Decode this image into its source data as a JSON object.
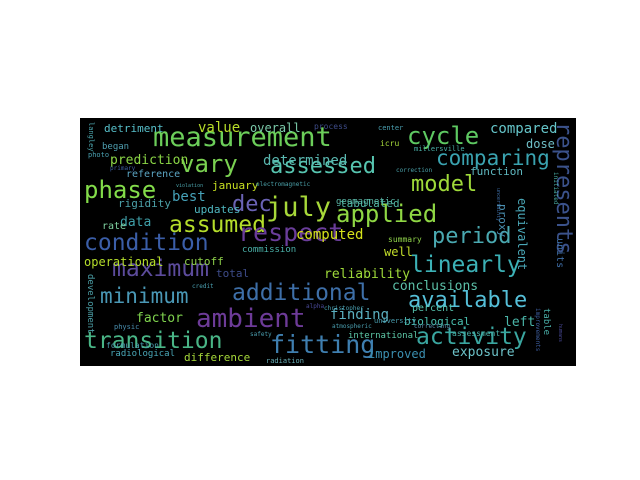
{
  "words": [
    {
      "text": "measurement",
      "color": "#6cce5a"
    },
    {
      "text": "cycle",
      "color": "#5ec962"
    },
    {
      "text": "compared",
      "color": "#65c5c9"
    },
    {
      "text": "vary",
      "color": "#7ad151"
    },
    {
      "text": "assessed",
      "color": "#57c5b0"
    },
    {
      "text": "comparing",
      "color": "#3aa3b0"
    },
    {
      "text": "phase",
      "color": "#83dc4a"
    },
    {
      "text": "dec",
      "color": "#6a63b5"
    },
    {
      "text": "july",
      "color": "#a7d839"
    },
    {
      "text": "model",
      "color": "#9fda3a"
    },
    {
      "text": "assumed",
      "color": "#b5de2b"
    },
    {
      "text": "applied",
      "color": "#8fd744"
    },
    {
      "text": "condition",
      "color": "#3b5ea8"
    },
    {
      "text": "respect",
      "color": "#6a3d9a"
    },
    {
      "text": "period",
      "color": "#4aa9b1"
    },
    {
      "text": "represents",
      "color": "#3b528b"
    },
    {
      "text": "maximum",
      "color": "#5c4b9c"
    },
    {
      "text": "linearly",
      "color": "#3cb1b6"
    },
    {
      "text": "minimum",
      "color": "#4a98b6"
    },
    {
      "text": "additional",
      "color": "#3e6fa8"
    },
    {
      "text": "available",
      "color": "#55bfd8"
    },
    {
      "text": "ambient",
      "color": "#6d3b98"
    },
    {
      "text": "transition",
      "color": "#49b586"
    },
    {
      "text": "fitting",
      "color": "#3f7fb0"
    },
    {
      "text": "activity",
      "color": "#3aa6a0"
    },
    {
      "text": "value",
      "color": "#b8de29"
    },
    {
      "text": "overall",
      "color": "#7ac9a8"
    },
    {
      "text": "detriment",
      "color": "#57bfc9"
    },
    {
      "text": "prediction",
      "color": "#8bd646"
    },
    {
      "text": "reference",
      "color": "#5ca6c4"
    },
    {
      "text": "began",
      "color": "#4f9fb0"
    },
    {
      "text": "determined",
      "color": "#5ab8b0"
    },
    {
      "text": "best",
      "color": "#46a2b9"
    },
    {
      "text": "rigidity",
      "color": "#4ca0a8"
    },
    {
      "text": "data",
      "color": "#3f9fa8"
    },
    {
      "text": "updates",
      "color": "#4fb7c0"
    },
    {
      "text": "january",
      "color": "#c8e020"
    },
    {
      "text": "computed",
      "color": "#d5e21a"
    },
    {
      "text": "well",
      "color": "#c3de2a"
    },
    {
      "text": "tabulated",
      "color": "#4fb3a0"
    },
    {
      "text": "proxy",
      "color": "#4a8fb0"
    },
    {
      "text": "equivalent",
      "color": "#4aa8b8"
    },
    {
      "text": "rate",
      "color": "#7ed0a0"
    },
    {
      "text": "operational",
      "color": "#b5de2b"
    },
    {
      "text": "cutoff",
      "color": "#8fd24a"
    },
    {
      "text": "reliability",
      "color": "#9fda3a"
    },
    {
      "text": "total",
      "color": "#3e4c8a"
    },
    {
      "text": "conclusions",
      "color": "#5cc0a8"
    },
    {
      "text": "factor",
      "color": "#7fd34e"
    },
    {
      "text": "finding",
      "color": "#5bb0c0"
    },
    {
      "text": "biological",
      "color": "#4ac0b0"
    },
    {
      "text": "percent",
      "color": "#57c5b0"
    },
    {
      "text": "left",
      "color": "#4ab5a8"
    },
    {
      "text": "improved",
      "color": "#3b8fb0"
    },
    {
      "text": "exposure",
      "color": "#6cc2c8"
    },
    {
      "text": "radiological",
      "color": "#4aa8b8"
    },
    {
      "text": "difference",
      "color": "#a6d83a"
    },
    {
      "text": "international",
      "color": "#5ec9a8"
    },
    {
      "text": "geomagnetic",
      "color": "#5ab8a8"
    },
    {
      "text": "dose",
      "color": "#6fbfc8"
    },
    {
      "text": "function",
      "color": "#5fb8c0"
    },
    {
      "text": "table",
      "color": "#4ab0a8"
    },
    {
      "text": "commission",
      "color": "#4ab0a8"
    },
    {
      "text": "development",
      "color": "#4ca0a8"
    },
    {
      "text": "formulation",
      "color": "#4c9fb0"
    },
    {
      "text": "radiation",
      "color": "#6ab0b8"
    },
    {
      "text": "units",
      "color": "#3f6fa8"
    },
    {
      "text": "langley",
      "color": "#4aa0a8"
    },
    {
      "text": "photo",
      "color": "#4aa0b0"
    },
    {
      "text": "physic",
      "color": "#4a8fb0"
    },
    {
      "text": "primary",
      "color": "#3e5fa0"
    },
    {
      "text": "summary",
      "color": "#8fd24a"
    },
    {
      "text": "assessment",
      "color": "#4ab0a8"
    },
    {
      "text": "correcting",
      "color": "#5c8fb0"
    },
    {
      "text": "university",
      "color": "#4a9fb0"
    },
    {
      "text": "millersville",
      "color": "#4ab0a8"
    },
    {
      "text": "icru",
      "color": "#a5d83a"
    },
    {
      "text": "center",
      "color": "#4a9fb0"
    },
    {
      "text": "process",
      "color": "#3e4c8a"
    },
    {
      "text": "safety",
      "color": "#4a9fb0"
    },
    {
      "text": "atmospheric",
      "color": "#4a9fb0"
    },
    {
      "text": "alpha",
      "color": "#4a4a9a"
    },
    {
      "text": "christopher",
      "color": "#4a9fb0"
    },
    {
      "text": "credit",
      "color": "#4a9fb0"
    },
    {
      "text": "electromagnetic",
      "color": "#4aa0a8"
    },
    {
      "text": "violation",
      "color": "#4aa0a8"
    },
    {
      "text": "correction",
      "color": "#4aa0a8"
    },
    {
      "text": "initiated",
      "color": "#4ab0a8"
    },
    {
      "text": "uncertainty",
      "color": "#3e6fa8"
    },
    {
      "text": "humans",
      "color": "#4a4a9a"
    },
    {
      "text": "improvements",
      "color": "#3e5fa0"
    }
  ]
}
